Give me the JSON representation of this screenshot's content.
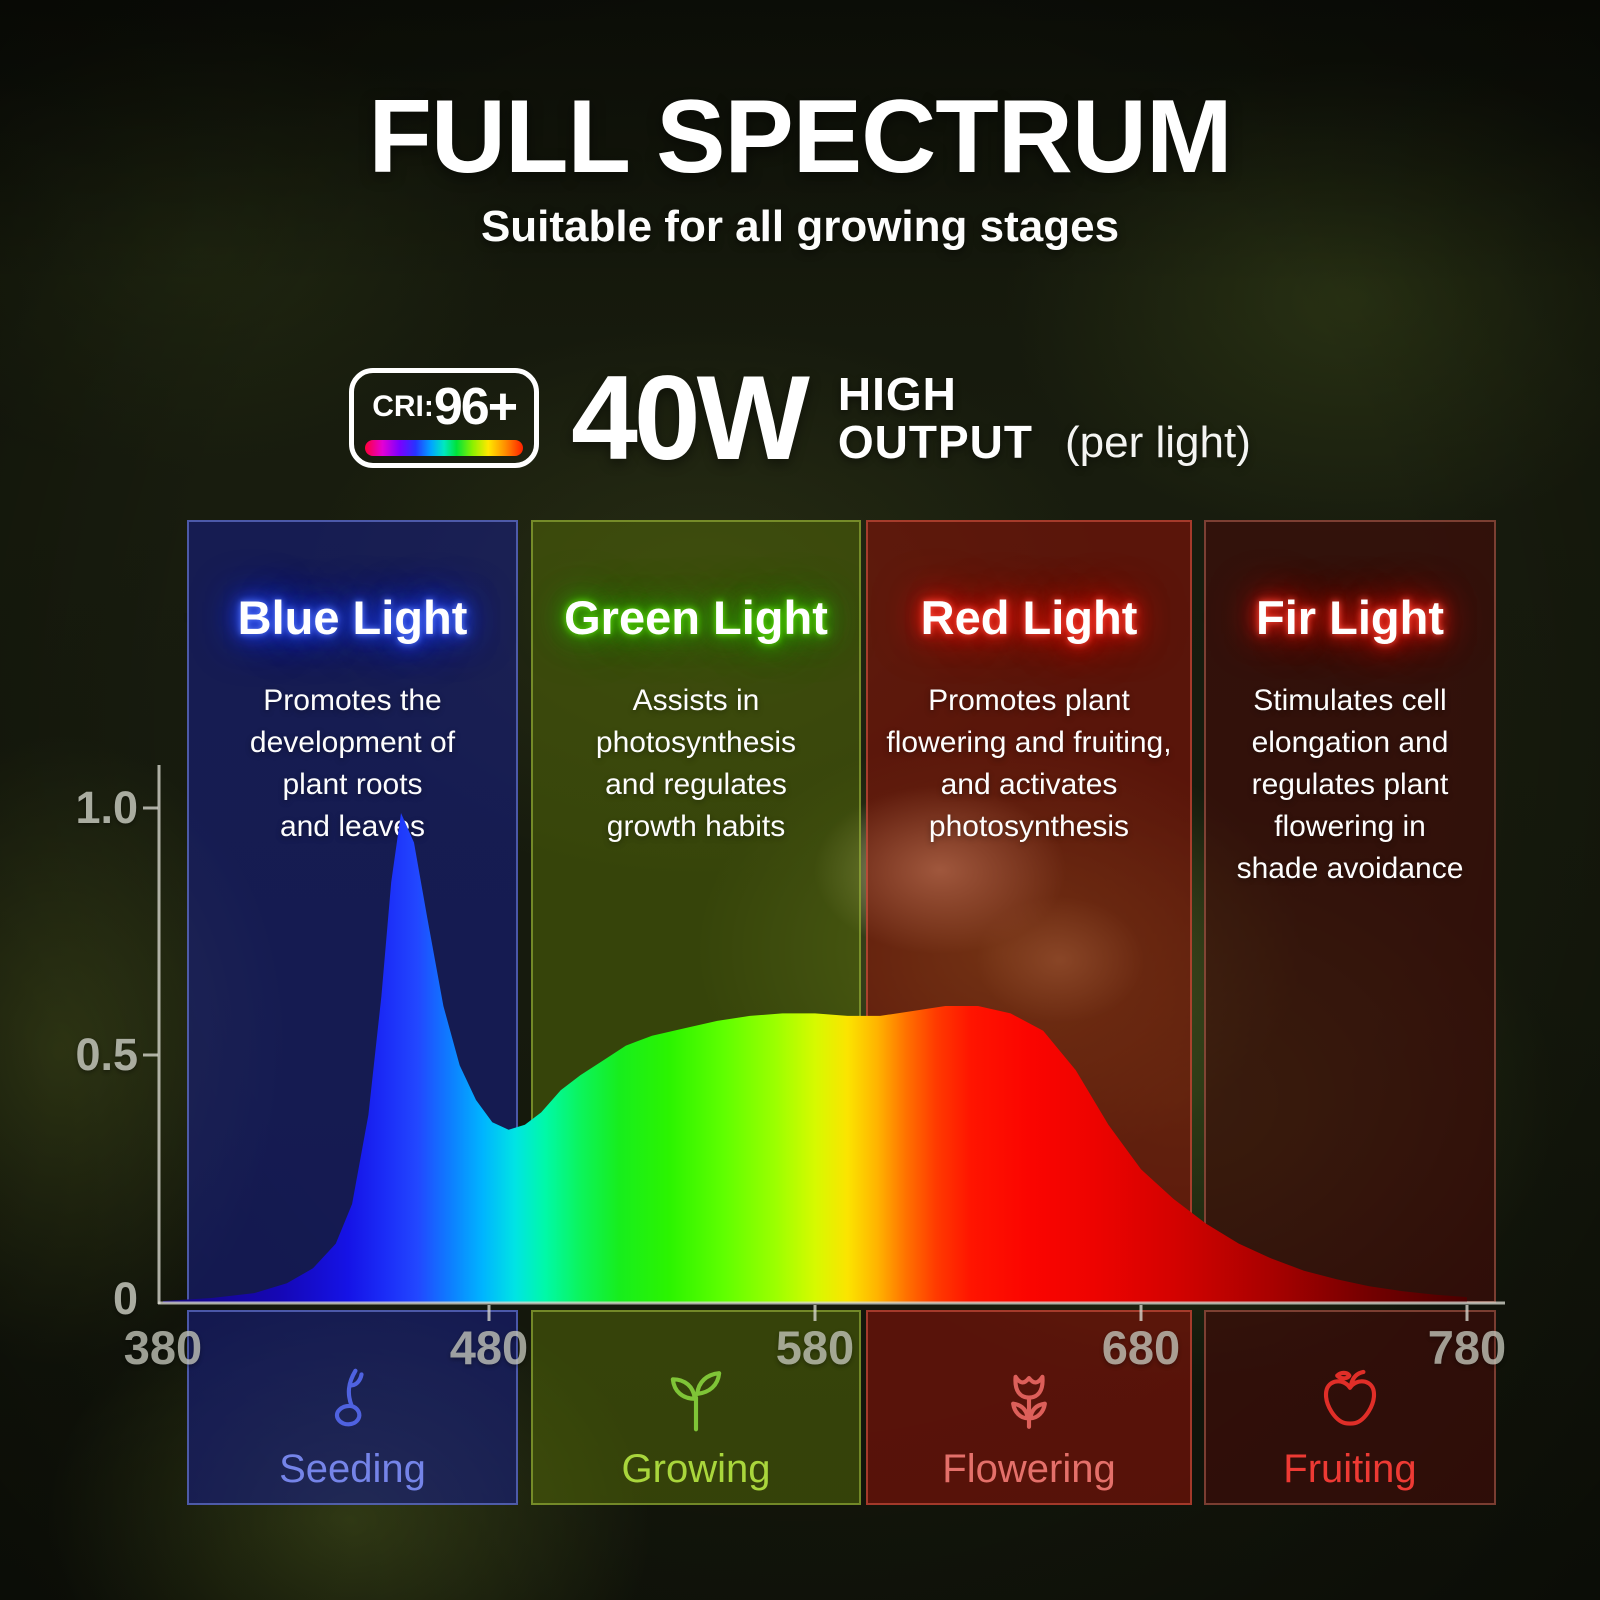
{
  "header": {
    "title": "FULL SPECTRUM",
    "subtitle": "Suitable for all growing stages"
  },
  "power": {
    "cri_label": "CRI:",
    "cri_value": "96+",
    "wattage": "40W",
    "high": "HIGH",
    "output": "OUTPUT",
    "note": "(per light)"
  },
  "zones": [
    {
      "name": "blue",
      "title": "Blue Light",
      "description": "Promotes the\ndevelopment of\nplant roots\nand leaves",
      "stage": "Seeding",
      "icon": "sprout-seed-icon",
      "accent": "#2c3cff",
      "stage_color": "#7584e8"
    },
    {
      "name": "green",
      "title": "Green Light",
      "description": "Assists in\nphotosynthesis\nand regulates\ngrowth habits",
      "stage": "Growing",
      "icon": "seedling-icon",
      "accent": "#46c800",
      "stage_color": "#a9d63c"
    },
    {
      "name": "red",
      "title": "Red Light",
      "description": "Promotes plant\nflowering and fruiting,\nand activates\nphotosynthesis",
      "stage": "Flowering",
      "icon": "tulip-flower-icon",
      "accent": "#ff2a18",
      "stage_color": "#e4706a"
    },
    {
      "name": "fir",
      "title": "Fir Light",
      "description": "Stimulates cell\nelongation and\nregulates plant\nflowering in\nshade avoidance",
      "stage": "Fruiting",
      "icon": "apple-icon",
      "accent": "#ff2a18",
      "stage_color": "#ee3a34"
    }
  ],
  "chart_data": {
    "type": "area",
    "title": "",
    "xlabel": "",
    "ylabel": "",
    "xlim": [
      380,
      780
    ],
    "ylim": [
      0,
      1
    ],
    "x_ticks": [
      "380",
      "480",
      "580",
      "680",
      "780"
    ],
    "y_ticks": [
      "1.0",
      "0.5",
      "0"
    ],
    "grid": false,
    "axis_color": "#d9d9cf",
    "x": [
      380,
      395,
      408,
      418,
      426,
      433,
      438,
      443,
      447,
      450,
      453,
      457,
      461,
      466,
      471,
      476,
      481,
      486,
      491,
      496,
      502,
      508,
      515,
      522,
      530,
      540,
      550,
      560,
      570,
      580,
      590,
      600,
      610,
      620,
      630,
      640,
      650,
      660,
      670,
      680,
      690,
      700,
      710,
      720,
      730,
      740,
      750,
      760,
      770,
      780
    ],
    "values": [
      0.004,
      0.01,
      0.02,
      0.04,
      0.07,
      0.12,
      0.2,
      0.38,
      0.62,
      0.85,
      0.99,
      0.93,
      0.78,
      0.6,
      0.48,
      0.41,
      0.365,
      0.35,
      0.36,
      0.385,
      0.43,
      0.46,
      0.49,
      0.52,
      0.54,
      0.555,
      0.57,
      0.58,
      0.585,
      0.585,
      0.58,
      0.58,
      0.59,
      0.6,
      0.6,
      0.585,
      0.55,
      0.47,
      0.36,
      0.27,
      0.21,
      0.16,
      0.12,
      0.09,
      0.065,
      0.048,
      0.034,
      0.024,
      0.017,
      0.012
    ],
    "gradient_stops": [
      {
        "wl": 380,
        "color": "#17077e"
      },
      {
        "wl": 415,
        "color": "#1507b4"
      },
      {
        "wl": 437,
        "color": "#1513e6"
      },
      {
        "wl": 448,
        "color": "#1b2cf7"
      },
      {
        "wl": 458,
        "color": "#2247ff"
      },
      {
        "wl": 468,
        "color": "#0e7dff"
      },
      {
        "wl": 478,
        "color": "#00b4ff"
      },
      {
        "wl": 488,
        "color": "#00e4e4"
      },
      {
        "wl": 497,
        "color": "#00f9a8"
      },
      {
        "wl": 508,
        "color": "#0cf45c"
      },
      {
        "wl": 520,
        "color": "#17ee1d"
      },
      {
        "wl": 535,
        "color": "#2bf400"
      },
      {
        "wl": 552,
        "color": "#5fff00"
      },
      {
        "wl": 568,
        "color": "#9cff00"
      },
      {
        "wl": 580,
        "color": "#d6fa00"
      },
      {
        "wl": 590,
        "color": "#fbe400"
      },
      {
        "wl": 599,
        "color": "#ffb300"
      },
      {
        "wl": 608,
        "color": "#ff7100"
      },
      {
        "wl": 617,
        "color": "#ff3a00"
      },
      {
        "wl": 628,
        "color": "#ff1400"
      },
      {
        "wl": 645,
        "color": "#fb0500"
      },
      {
        "wl": 665,
        "color": "#ee0300"
      },
      {
        "wl": 690,
        "color": "#d40200"
      },
      {
        "wl": 720,
        "color": "#a80100"
      },
      {
        "wl": 750,
        "color": "#740000"
      },
      {
        "wl": 780,
        "color": "#4a0000"
      }
    ]
  }
}
